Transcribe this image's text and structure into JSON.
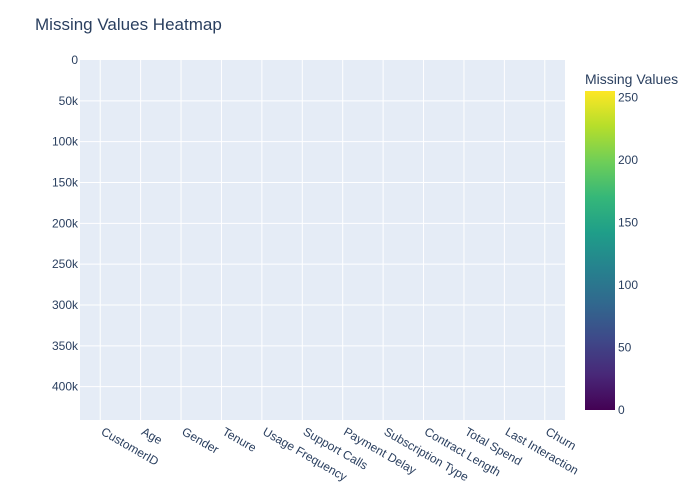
{
  "chart_data": {
    "type": "heatmap",
    "title": "Missing Values Heatmap",
    "xlabel": "",
    "ylabel": "",
    "categories": [
      "CustomerID",
      "Age",
      "Gender",
      "Tenure",
      "Usage Frequency",
      "Support Calls",
      "Payment Delay",
      "Subscription Type",
      "Contract Length",
      "Total Spend",
      "Last Interaction",
      "Churn"
    ],
    "y_ticks": [
      0,
      50000,
      100000,
      150000,
      200000,
      250000,
      300000,
      350000,
      400000
    ],
    "y_tick_labels": [
      "0",
      "50k",
      "100k",
      "150k",
      "200k",
      "250k",
      "300k",
      "350k",
      "400k"
    ],
    "ylim": [
      440832,
      0
    ],
    "y_reversed": true,
    "colorbar": {
      "title": "Missing Values",
      "range": [
        0,
        255
      ],
      "ticks": [
        0,
        50,
        100,
        150,
        200,
        250
      ],
      "colorscale": [
        "#440154",
        "#482878",
        "#3e4989",
        "#31688e",
        "#26828e",
        "#1f9e89",
        "#35b779",
        "#6ece58",
        "#b5de2b",
        "#fde725"
      ]
    },
    "grid": true,
    "plot_background": "#e5ecf6",
    "grid_color": "#ffffff",
    "text_color": "#2a3f5f"
  }
}
